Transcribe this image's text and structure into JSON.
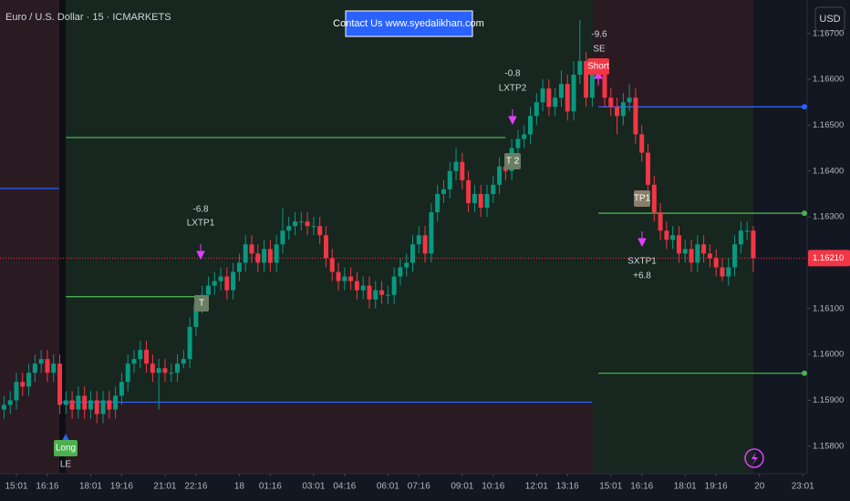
{
  "chart_data": {
    "type": "candlestick",
    "title": "Euro / U.S. Dollar · 15 · ICMARKETS",
    "banner": "Contact Us www.syedalikhan.com",
    "currency": "USD",
    "up_color": "#089981",
    "down_color": "#f23645",
    "grid": false,
    "xlim": [
      -0.65,
      129.7
    ],
    "ylim": [
      1.1574,
      1.16773
    ],
    "xticks": [
      {
        "value": 2,
        "label": "15:01"
      },
      {
        "value": 7,
        "label": "16:16"
      },
      {
        "value": 14,
        "label": "18:01"
      },
      {
        "value": 19,
        "label": "19:16"
      },
      {
        "value": 26,
        "label": "21:01"
      },
      {
        "value": 31,
        "label": "22:16"
      },
      {
        "value": 38,
        "label": "18"
      },
      {
        "value": 43,
        "label": "01:16"
      },
      {
        "value": 50,
        "label": "03:01"
      },
      {
        "value": 55,
        "label": "04:16"
      },
      {
        "value": 62,
        "label": "06:01"
      },
      {
        "value": 67,
        "label": "07:16"
      },
      {
        "value": 74,
        "label": "09:01"
      },
      {
        "value": 79,
        "label": "10:16"
      },
      {
        "value": 86,
        "label": "12:01"
      },
      {
        "value": 91,
        "label": "13:16"
      },
      {
        "value": 98,
        "label": "15:01"
      },
      {
        "value": 103,
        "label": "16:16"
      },
      {
        "value": 110,
        "label": "18:01"
      },
      {
        "value": 115,
        "label": "19:16"
      },
      {
        "value": 122,
        "label": "20"
      },
      {
        "value": 129,
        "label": "23:01"
      }
    ],
    "yticks": [
      {
        "value": 1.158,
        "label": "1.15800"
      },
      {
        "value": 1.159,
        "label": "1.15900"
      },
      {
        "value": 1.16,
        "label": "1.16000"
      },
      {
        "value": 1.161,
        "label": "1.16100"
      },
      {
        "value": 1.163,
        "label": "1.16300"
      },
      {
        "value": 1.164,
        "label": "1.16400"
      },
      {
        "value": 1.165,
        "label": "1.16500"
      },
      {
        "value": 1.166,
        "label": "1.16600"
      },
      {
        "value": 1.167,
        "label": "1.16700"
      }
    ],
    "last_price": {
      "value": 1.1621,
      "label": "1.16210"
    },
    "levels": [
      {
        "start": -0.65,
        "end": 8.9,
        "price": 1.16362,
        "color": "#2962ff"
      },
      {
        "start": 9,
        "end": 95,
        "price": 1.15896,
        "color": "#2962ff"
      },
      {
        "start": 10,
        "end": 81,
        "price": 1.16473,
        "color": "#4caf50"
      },
      {
        "start": 10,
        "end": 32.5,
        "price": 1.16126,
        "color": "#4caf50"
      },
      {
        "start": 96,
        "end": 131,
        "price": 1.1654,
        "color": "#2962ff"
      },
      {
        "start": 96,
        "end": 131,
        "price": 1.16308,
        "color": "#4caf50"
      },
      {
        "start": 96,
        "end": 131,
        "price": 1.15959,
        "color": "#4caf50"
      }
    ],
    "annotations": [
      "-6.8",
      "LXTP1",
      "-0.8",
      "LXTP2",
      "-9.6",
      "SE",
      "SXTP1",
      "+6.8",
      "LE"
    ],
    "signals": [
      "Long",
      "Short",
      "T",
      "T 2",
      "TP1"
    ],
    "candles": [
      [
        1.1588,
        1.1591,
        1.1586,
        1.1589
      ],
      [
        1.1589,
        1.1592,
        1.1587,
        1.159
      ],
      [
        1.159,
        1.1596,
        1.1588,
        1.1594
      ],
      [
        1.1594,
        1.1596,
        1.1591,
        1.1593
      ],
      [
        1.1593,
        1.1598,
        1.1591,
        1.1596
      ],
      [
        1.1596,
        1.16,
        1.1594,
        1.1598
      ],
      [
        1.1598,
        1.1601,
        1.1596,
        1.1599
      ],
      [
        1.1599,
        1.1601,
        1.1594,
        1.1596
      ],
      [
        1.1596,
        1.16,
        1.1594,
        1.1598
      ],
      [
        1.1598,
        1.16,
        1.1587,
        1.1589
      ],
      [
        1.1589,
        1.1592,
        1.1587,
        1.159
      ],
      [
        1.159,
        1.1592,
        1.1586,
        1.1588
      ],
      [
        1.1588,
        1.1593,
        1.1586,
        1.1591
      ],
      [
        1.1591,
        1.1593,
        1.1586,
        1.1588
      ],
      [
        1.1588,
        1.1592,
        1.1586,
        1.159
      ],
      [
        1.159,
        1.1592,
        1.1585,
        1.1587
      ],
      [
        1.1587,
        1.1592,
        1.1585,
        1.159
      ],
      [
        1.159,
        1.1592,
        1.1586,
        1.1588
      ],
      [
        1.1588,
        1.1593,
        1.1586,
        1.1591
      ],
      [
        1.1591,
        1.1596,
        1.1589,
        1.1594
      ],
      [
        1.1594,
        1.16,
        1.1592,
        1.1598
      ],
      [
        1.1598,
        1.1601,
        1.1596,
        1.1599
      ],
      [
        1.1599,
        1.1603,
        1.1597,
        1.1601
      ],
      [
        1.1601,
        1.1603,
        1.1596,
        1.1598
      ],
      [
        1.1598,
        1.16,
        1.1594,
        1.1596
      ],
      [
        1.1596,
        1.1599,
        1.1588,
        1.1597
      ],
      [
        1.1597,
        1.1599,
        1.1594,
        1.1596
      ],
      [
        1.1596,
        1.1598,
        1.1594,
        1.1596
      ],
      [
        1.1596,
        1.16,
        1.1594,
        1.1598
      ],
      [
        1.1598,
        1.1601,
        1.1597,
        1.1599
      ],
      [
        1.1599,
        1.1608,
        1.1597,
        1.1606
      ],
      [
        1.1606,
        1.1613,
        1.1604,
        1.1611
      ],
      [
        1.1611,
        1.1615,
        1.1609,
        1.1613
      ],
      [
        1.1613,
        1.1617,
        1.1611,
        1.1615
      ],
      [
        1.1615,
        1.1618,
        1.1613,
        1.1616
      ],
      [
        1.1616,
        1.1619,
        1.1614,
        1.1617
      ],
      [
        1.1617,
        1.1619,
        1.1612,
        1.1614
      ],
      [
        1.1614,
        1.162,
        1.1612,
        1.1618
      ],
      [
        1.1618,
        1.1622,
        1.1616,
        1.162
      ],
      [
        1.162,
        1.1626,
        1.1618,
        1.1624
      ],
      [
        1.1624,
        1.1626,
        1.162,
        1.1622
      ],
      [
        1.1622,
        1.1624,
        1.1618,
        1.162
      ],
      [
        1.162,
        1.1625,
        1.1618,
        1.1623
      ],
      [
        1.1623,
        1.1625,
        1.1618,
        1.162
      ],
      [
        1.162,
        1.1626,
        1.1618,
        1.1624
      ],
      [
        1.1624,
        1.1632,
        1.1622,
        1.1627
      ],
      [
        1.1627,
        1.163,
        1.1625,
        1.1628
      ],
      [
        1.1628,
        1.1631,
        1.1626,
        1.1629
      ],
      [
        1.1629,
        1.1631,
        1.1627,
        1.1629
      ],
      [
        1.1629,
        1.1631,
        1.1626,
        1.1628
      ],
      [
        1.1628,
        1.163,
        1.1626,
        1.1628
      ],
      [
        1.1628,
        1.163,
        1.1624,
        1.1626
      ],
      [
        1.1626,
        1.1628,
        1.1619,
        1.1621
      ],
      [
        1.1621,
        1.1623,
        1.1616,
        1.1618
      ],
      [
        1.1618,
        1.162,
        1.1614,
        1.1616
      ],
      [
        1.1616,
        1.1619,
        1.1614,
        1.1617
      ],
      [
        1.1617,
        1.1619,
        1.1614,
        1.1616
      ],
      [
        1.1616,
        1.1618,
        1.1612,
        1.1614
      ],
      [
        1.1614,
        1.1617,
        1.1612,
        1.1615
      ],
      [
        1.1615,
        1.1617,
        1.161,
        1.1612
      ],
      [
        1.1612,
        1.1616,
        1.161,
        1.1614
      ],
      [
        1.1614,
        1.1616,
        1.1611,
        1.1613
      ],
      [
        1.1613,
        1.1615,
        1.1611,
        1.1613
      ],
      [
        1.1613,
        1.1619,
        1.1611,
        1.1617
      ],
      [
        1.1617,
        1.1621,
        1.1615,
        1.1619
      ],
      [
        1.1619,
        1.1622,
        1.1617,
        1.162
      ],
      [
        1.162,
        1.1626,
        1.1618,
        1.1624
      ],
      [
        1.1624,
        1.1628,
        1.1622,
        1.1626
      ],
      [
        1.1626,
        1.1628,
        1.162,
        1.1622
      ],
      [
        1.1622,
        1.1633,
        1.162,
        1.1631
      ],
      [
        1.1631,
        1.1637,
        1.1629,
        1.1635
      ],
      [
        1.1635,
        1.1638,
        1.1633,
        1.1636
      ],
      [
        1.1636,
        1.1642,
        1.1634,
        1.164
      ],
      [
        1.164,
        1.1645,
        1.1638,
        1.1642
      ],
      [
        1.1642,
        1.1644,
        1.1636,
        1.1638
      ],
      [
        1.1638,
        1.164,
        1.1631,
        1.1633
      ],
      [
        1.1633,
        1.1637,
        1.1631,
        1.1635
      ],
      [
        1.1635,
        1.1637,
        1.163,
        1.1632
      ],
      [
        1.1632,
        1.1637,
        1.163,
        1.1635
      ],
      [
        1.1635,
        1.1639,
        1.1633,
        1.1637
      ],
      [
        1.1637,
        1.1643,
        1.1635,
        1.1641
      ],
      [
        1.1641,
        1.1643,
        1.1638,
        1.164
      ],
      [
        1.164,
        1.1647,
        1.1638,
        1.1645
      ],
      [
        1.1645,
        1.1649,
        1.1643,
        1.1647
      ],
      [
        1.1647,
        1.165,
        1.1645,
        1.1648
      ],
      [
        1.1648,
        1.1654,
        1.1646,
        1.1652
      ],
      [
        1.1652,
        1.1657,
        1.165,
        1.1655
      ],
      [
        1.1655,
        1.166,
        1.1653,
        1.1658
      ],
      [
        1.1658,
        1.166,
        1.1652,
        1.1654
      ],
      [
        1.1654,
        1.1658,
        1.1652,
        1.1656
      ],
      [
        1.1656,
        1.1662,
        1.1654,
        1.1659
      ],
      [
        1.1659,
        1.1661,
        1.1651,
        1.1653
      ],
      [
        1.1653,
        1.1664,
        1.1651,
        1.1661
      ],
      [
        1.1661,
        1.1673,
        1.1659,
        1.1664
      ],
      [
        1.1664,
        1.1666,
        1.1654,
        1.1656
      ],
      [
        1.1656,
        1.1664,
        1.1654,
        1.1662
      ],
      [
        1.1662,
        1.1664,
        1.1659,
        1.1661
      ],
      [
        1.1661,
        1.1663,
        1.1654,
        1.1656
      ],
      [
        1.1656,
        1.1658,
        1.1652,
        1.1654
      ],
      [
        1.1654,
        1.1656,
        1.1648,
        1.1652
      ],
      [
        1.1652,
        1.1657,
        1.165,
        1.1655
      ],
      [
        1.1655,
        1.1659,
        1.1653,
        1.1656
      ],
      [
        1.1656,
        1.1658,
        1.1646,
        1.1648
      ],
      [
        1.1648,
        1.165,
        1.1642,
        1.1644
      ],
      [
        1.1644,
        1.1646,
        1.1635,
        1.1637
      ],
      [
        1.1637,
        1.1639,
        1.1629,
        1.1631
      ],
      [
        1.1631,
        1.1633,
        1.1625,
        1.1627
      ],
      [
        1.1627,
        1.1629,
        1.1623,
        1.1625
      ],
      [
        1.1625,
        1.1628,
        1.1623,
        1.1626
      ],
      [
        1.1626,
        1.1628,
        1.162,
        1.1622
      ],
      [
        1.1622,
        1.1625,
        1.162,
        1.1623
      ],
      [
        1.1623,
        1.1625,
        1.1618,
        1.162
      ],
      [
        1.162,
        1.1626,
        1.1618,
        1.1624
      ],
      [
        1.1624,
        1.1626,
        1.162,
        1.1622
      ],
      [
        1.1622,
        1.1624,
        1.1619,
        1.1621
      ],
      [
        1.1621,
        1.1623,
        1.1617,
        1.1619
      ],
      [
        1.1619,
        1.1621,
        1.1616,
        1.1617
      ],
      [
        1.1617,
        1.1621,
        1.1615,
        1.1619
      ],
      [
        1.1619,
        1.1626,
        1.1617,
        1.1624
      ],
      [
        1.1624,
        1.1629,
        1.1622,
        1.1627
      ],
      [
        1.1627,
        1.1629,
        1.1625,
        1.1627
      ],
      [
        1.1627,
        1.1628,
        1.1618,
        1.1621
      ]
    ]
  }
}
